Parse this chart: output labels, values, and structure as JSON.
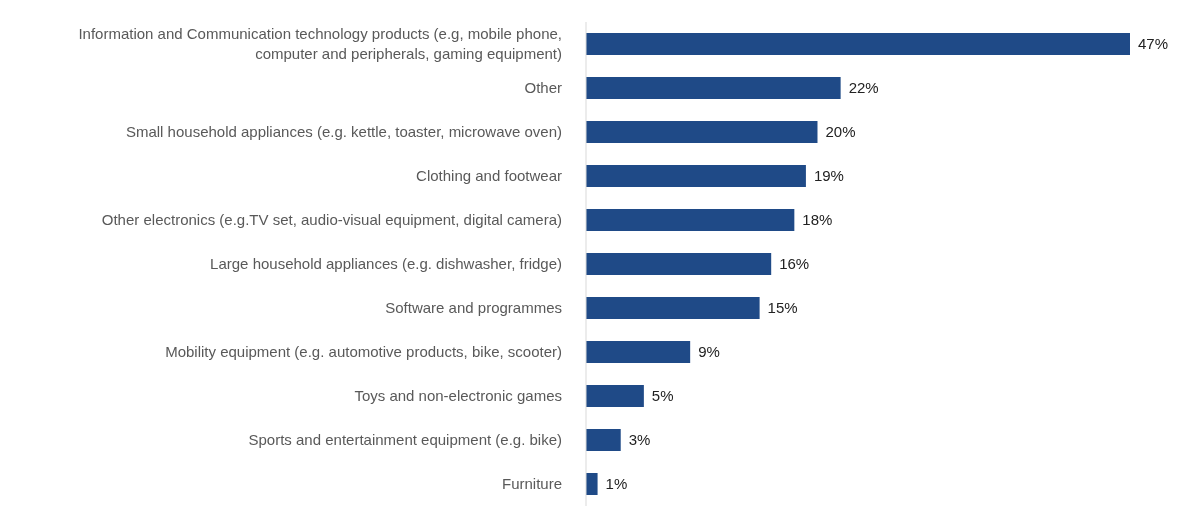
{
  "chart_data": {
    "type": "bar",
    "orientation": "horizontal",
    "categories": [
      "Information and Communication technology products (e.g, mobile phone, computer and peripherals, gaming equipment)",
      "Other",
      "Small household appliances (e.g. kettle, toaster, microwave oven)",
      "Clothing and footwear",
      "Other electronics (e.g.TV set, audio-visual equipment, digital camera)",
      "Large household appliances (e.g. dishwasher, fridge)",
      "Software and programmes",
      "Mobility equipment (e.g. automotive products, bike, scooter)",
      "Toys and non-electronic games",
      "Sports and entertainment equipment (e.g. bike)",
      "Furniture"
    ],
    "values": [
      47,
      22,
      20,
      19,
      18,
      16,
      15,
      9,
      5,
      3,
      1
    ],
    "value_labels": [
      "47%",
      "22%",
      "20%",
      "19%",
      "18%",
      "16%",
      "15%",
      "9%",
      "5%",
      "3%",
      "1%"
    ],
    "color": "#1f4a87",
    "grid": false,
    "legend": false
  }
}
